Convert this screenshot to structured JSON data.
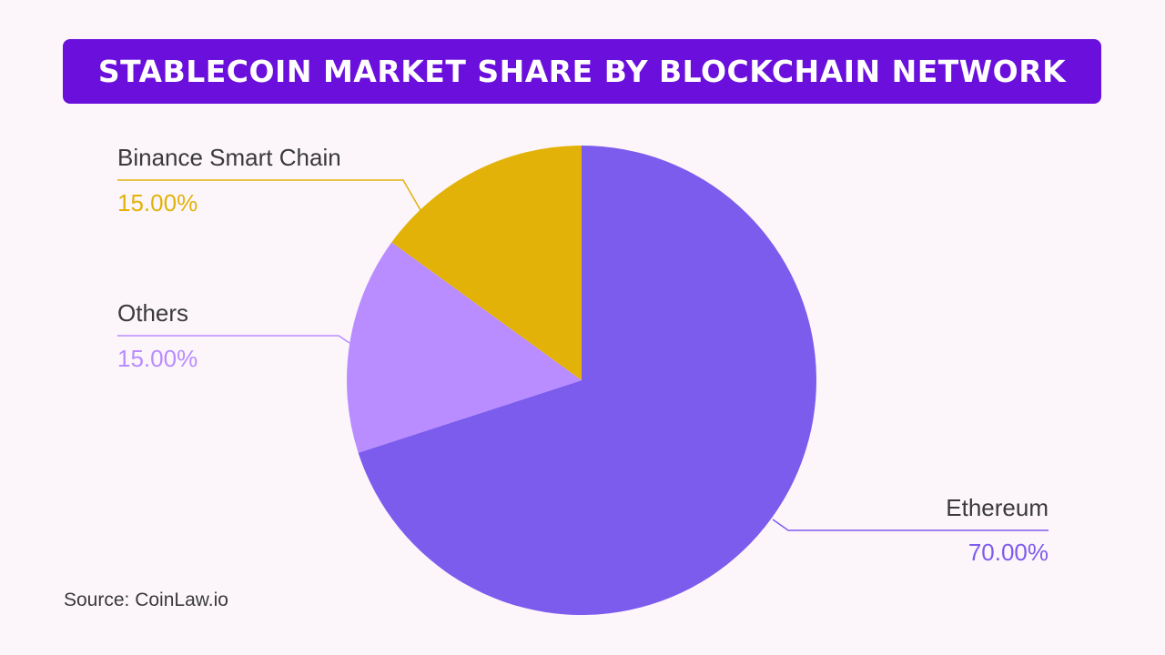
{
  "header": {
    "title": "STABLECOIN MARKET SHARE BY BLOCKCHAIN NETWORK"
  },
  "footer": {
    "source": "Source: CoinLaw.io"
  },
  "colors": {
    "background": "#fcf6fb",
    "banner": "#6a0fdc",
    "ethereum": "#7b5ced",
    "binance": "#e2b208",
    "others": "#b98cff",
    "label_text": "#3a3a3a"
  },
  "chart_data": {
    "type": "pie",
    "title": "STABLECOIN MARKET SHARE BY BLOCKCHAIN NETWORK",
    "slices": [
      {
        "label": "Ethereum",
        "value": 70.0,
        "value_label": "70.00%",
        "color": "#7b5ced"
      },
      {
        "label": "Others",
        "value": 15.0,
        "value_label": "15.00%",
        "color": "#b98cff"
      },
      {
        "label": "Binance Smart Chain",
        "value": 15.0,
        "value_label": "15.00%",
        "color": "#e2b208"
      }
    ],
    "start": "12 o'clock, clockwise",
    "legend": "none (callout labels)"
  }
}
